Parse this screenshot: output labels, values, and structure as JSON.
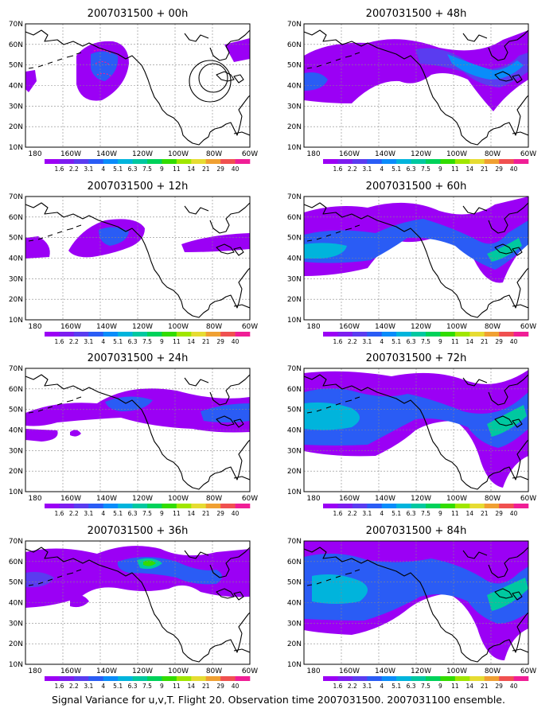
{
  "figure": {
    "caption": "Signal Variance for u,v,T. Flight 20. Observation time 2007031500. 2007031100 ensemble.",
    "x_ticks": [
      "180",
      "160W",
      "140W",
      "120W",
      "100W",
      "80W",
      "60W"
    ],
    "y_ticks": [
      "10N",
      "20N",
      "30N",
      "40N",
      "50N",
      "60N",
      "70N"
    ],
    "colorbar": {
      "levels": [
        "1.6",
        "2.2",
        "3.1",
        "4",
        "5.1",
        "6.3",
        "7.5",
        "9",
        "11",
        "14",
        "21",
        "29",
        "40"
      ],
      "colors": [
        "#9b00f5",
        "#7d1df0",
        "#5a3cf0",
        "#2a5cf5",
        "#0a8cfa",
        "#00b4dc",
        "#00c8a0",
        "#00d25a",
        "#32dc00",
        "#a0e600",
        "#e6dc32",
        "#f0a032",
        "#f05050",
        "#f01e96"
      ]
    },
    "panels": [
      {
        "id": "00h",
        "title": "2007031500 + 00h"
      },
      {
        "id": "48h",
        "title": "2007031500 + 48h"
      },
      {
        "id": "12h",
        "title": "2007031500 + 12h"
      },
      {
        "id": "60h",
        "title": "2007031500 + 60h"
      },
      {
        "id": "24h",
        "title": "2007031500 + 24h"
      },
      {
        "id": "72h",
        "title": "2007031500 + 72h"
      },
      {
        "id": "36h",
        "title": "2007031500 + 36h"
      },
      {
        "id": "84h",
        "title": "2007031500 + 84h"
      }
    ]
  }
}
